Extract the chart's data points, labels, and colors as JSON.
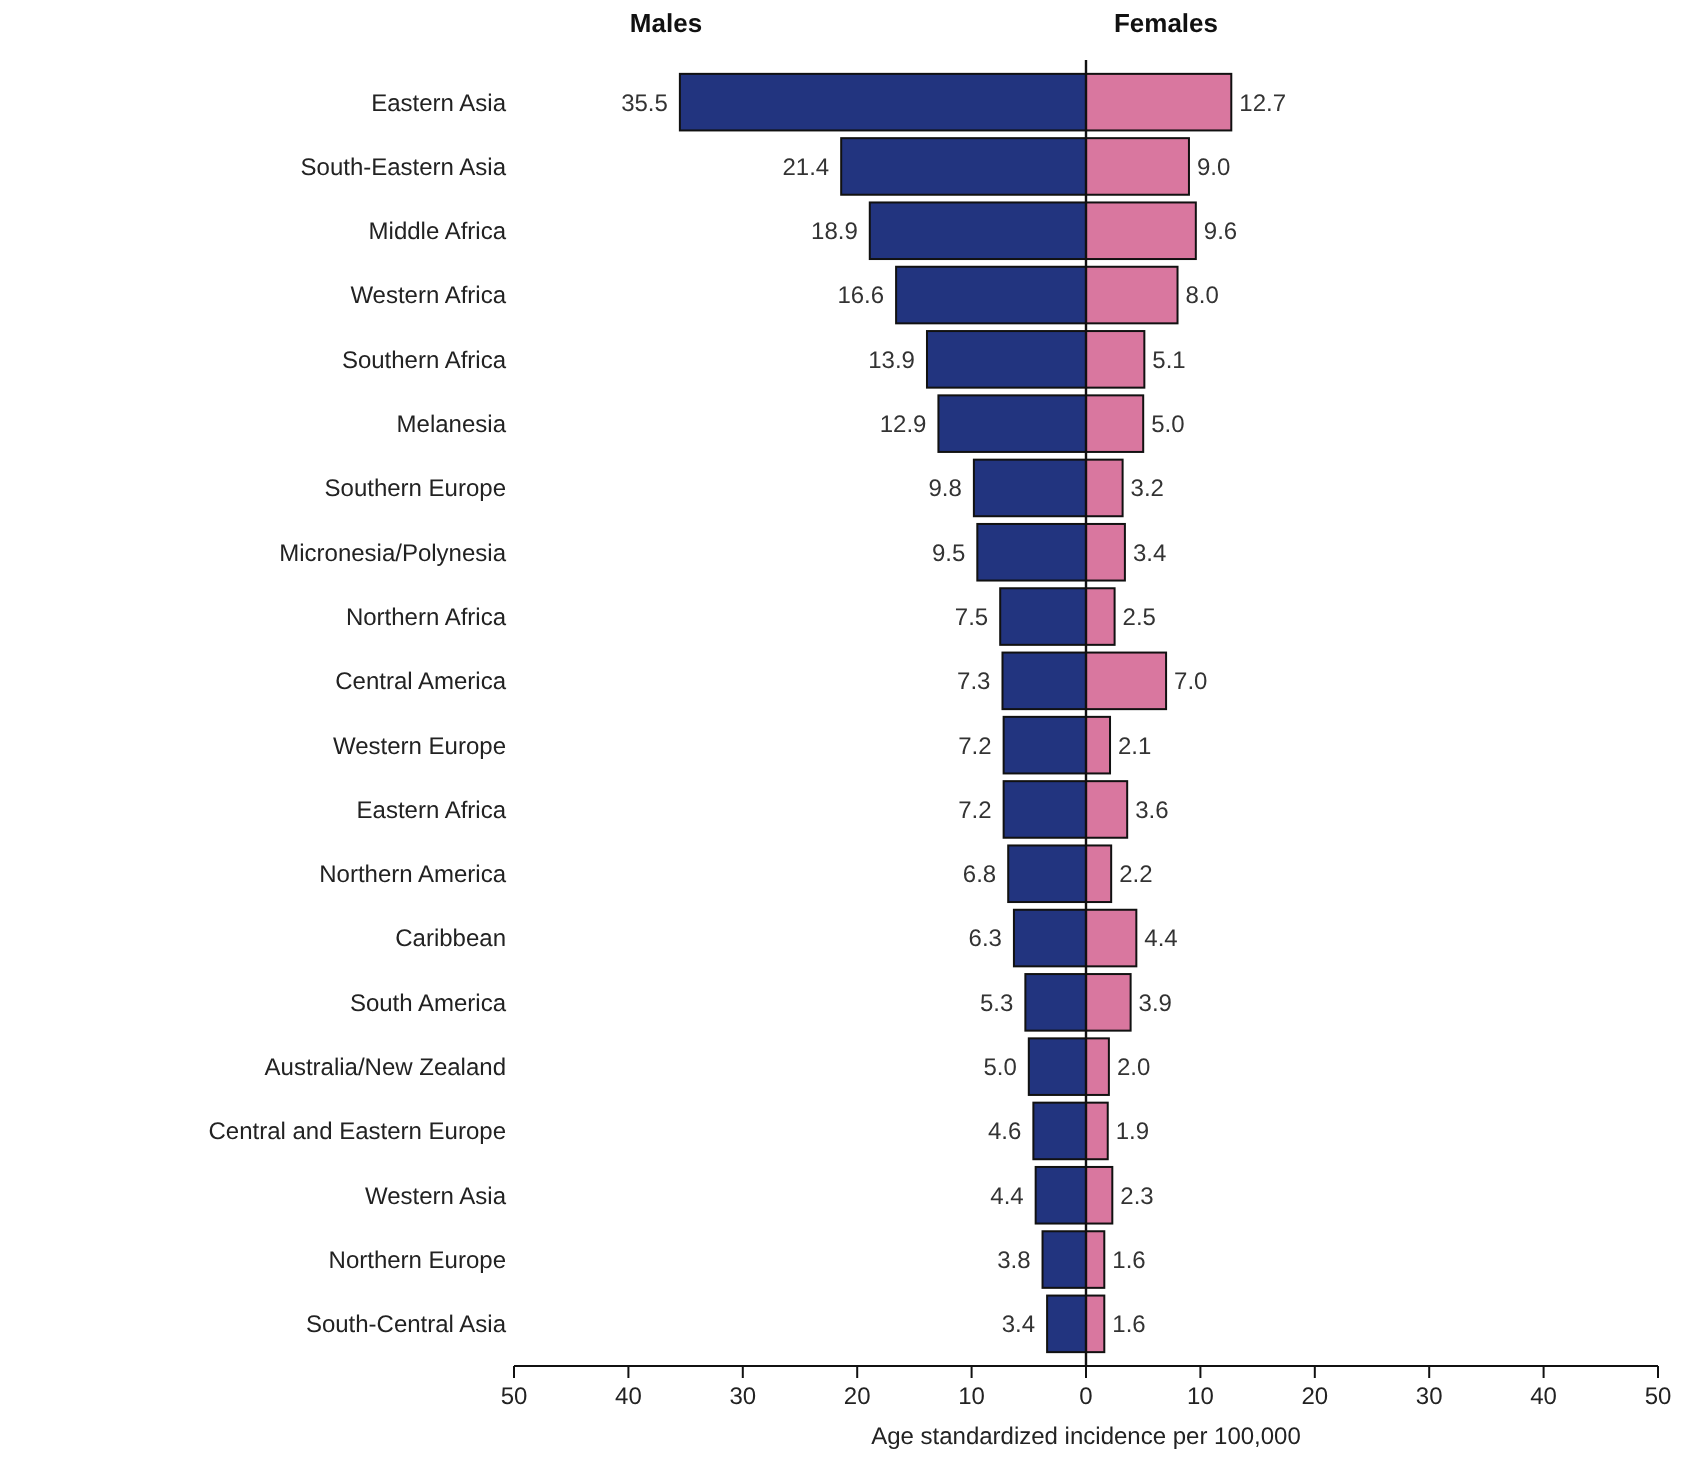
{
  "chart_data": {
    "type": "bar",
    "orientation": "horizontal",
    "xlabel": "Age standardized incidence per 100,000",
    "categories": [
      "Eastern Asia",
      "South-Eastern Asia",
      "Middle Africa",
      "Western Africa",
      "Southern Africa",
      "Melanesia",
      "Southern Europe",
      "Micronesia/Polynesia",
      "Northern Africa",
      "Central America",
      "Western Europe",
      "Eastern Africa",
      "Northern America",
      "Caribbean",
      "South America",
      "Australia/New Zealand",
      "Central and Eastern Europe",
      "Western Asia",
      "Northern Europe",
      "South-Central Asia"
    ],
    "series": [
      {
        "name": "Males",
        "color": "#22347f",
        "values": [
          35.5,
          21.4,
          18.9,
          16.6,
          13.9,
          12.9,
          9.8,
          9.5,
          7.5,
          7.3,
          7.2,
          7.2,
          6.8,
          6.3,
          5.3,
          5.0,
          4.6,
          4.4,
          3.8,
          3.4
        ],
        "base": [
          -35.5,
          -21.4,
          -18.9,
          -16.6,
          -13.9,
          -12.9,
          -9.8,
          -9.5,
          -7.5,
          -7.3,
          -7.2,
          -7.2,
          -6.8,
          -6.3,
          -5.3,
          -5.0,
          -4.6,
          -4.4,
          -3.8,
          -3.4
        ],
        "value_labels": [
          "35.5",
          "21.4",
          "18.9",
          "16.6",
          "13.9",
          "12.9",
          "9.8",
          "9.5",
          "7.5",
          "7.3",
          "7.2",
          "7.2",
          "6.8",
          "6.3",
          "5.3",
          "5.0",
          "4.6",
          "4.4",
          "3.8",
          "3.4"
        ]
      },
      {
        "name": "Females",
        "color": "#d9779f",
        "values": [
          12.7,
          9.0,
          9.6,
          8.0,
          5.1,
          5.0,
          3.2,
          3.4,
          2.5,
          7.0,
          2.1,
          3.6,
          2.2,
          4.4,
          3.9,
          2.0,
          1.9,
          2.3,
          1.6,
          1.6
        ],
        "value_labels": [
          "12.7",
          "9.0",
          "9.6",
          "8.0",
          "5.1",
          "5.0",
          "3.2",
          "3.4",
          "2.5",
          "7.0",
          "2.1",
          "3.6",
          "2.2",
          "4.4",
          "3.9",
          "2.0",
          "1.9",
          "2.3",
          "1.6",
          "1.6"
        ]
      }
    ],
    "xlim": [
      -50,
      50
    ],
    "xticks": [
      {
        "value": -50,
        "label": "50"
      },
      {
        "value": -40,
        "label": "40"
      },
      {
        "value": -30,
        "label": "30"
      },
      {
        "value": -20,
        "label": "20"
      },
      {
        "value": -10,
        "label": "10"
      },
      0,
      10,
      20,
      30,
      40,
      50
    ]
  }
}
